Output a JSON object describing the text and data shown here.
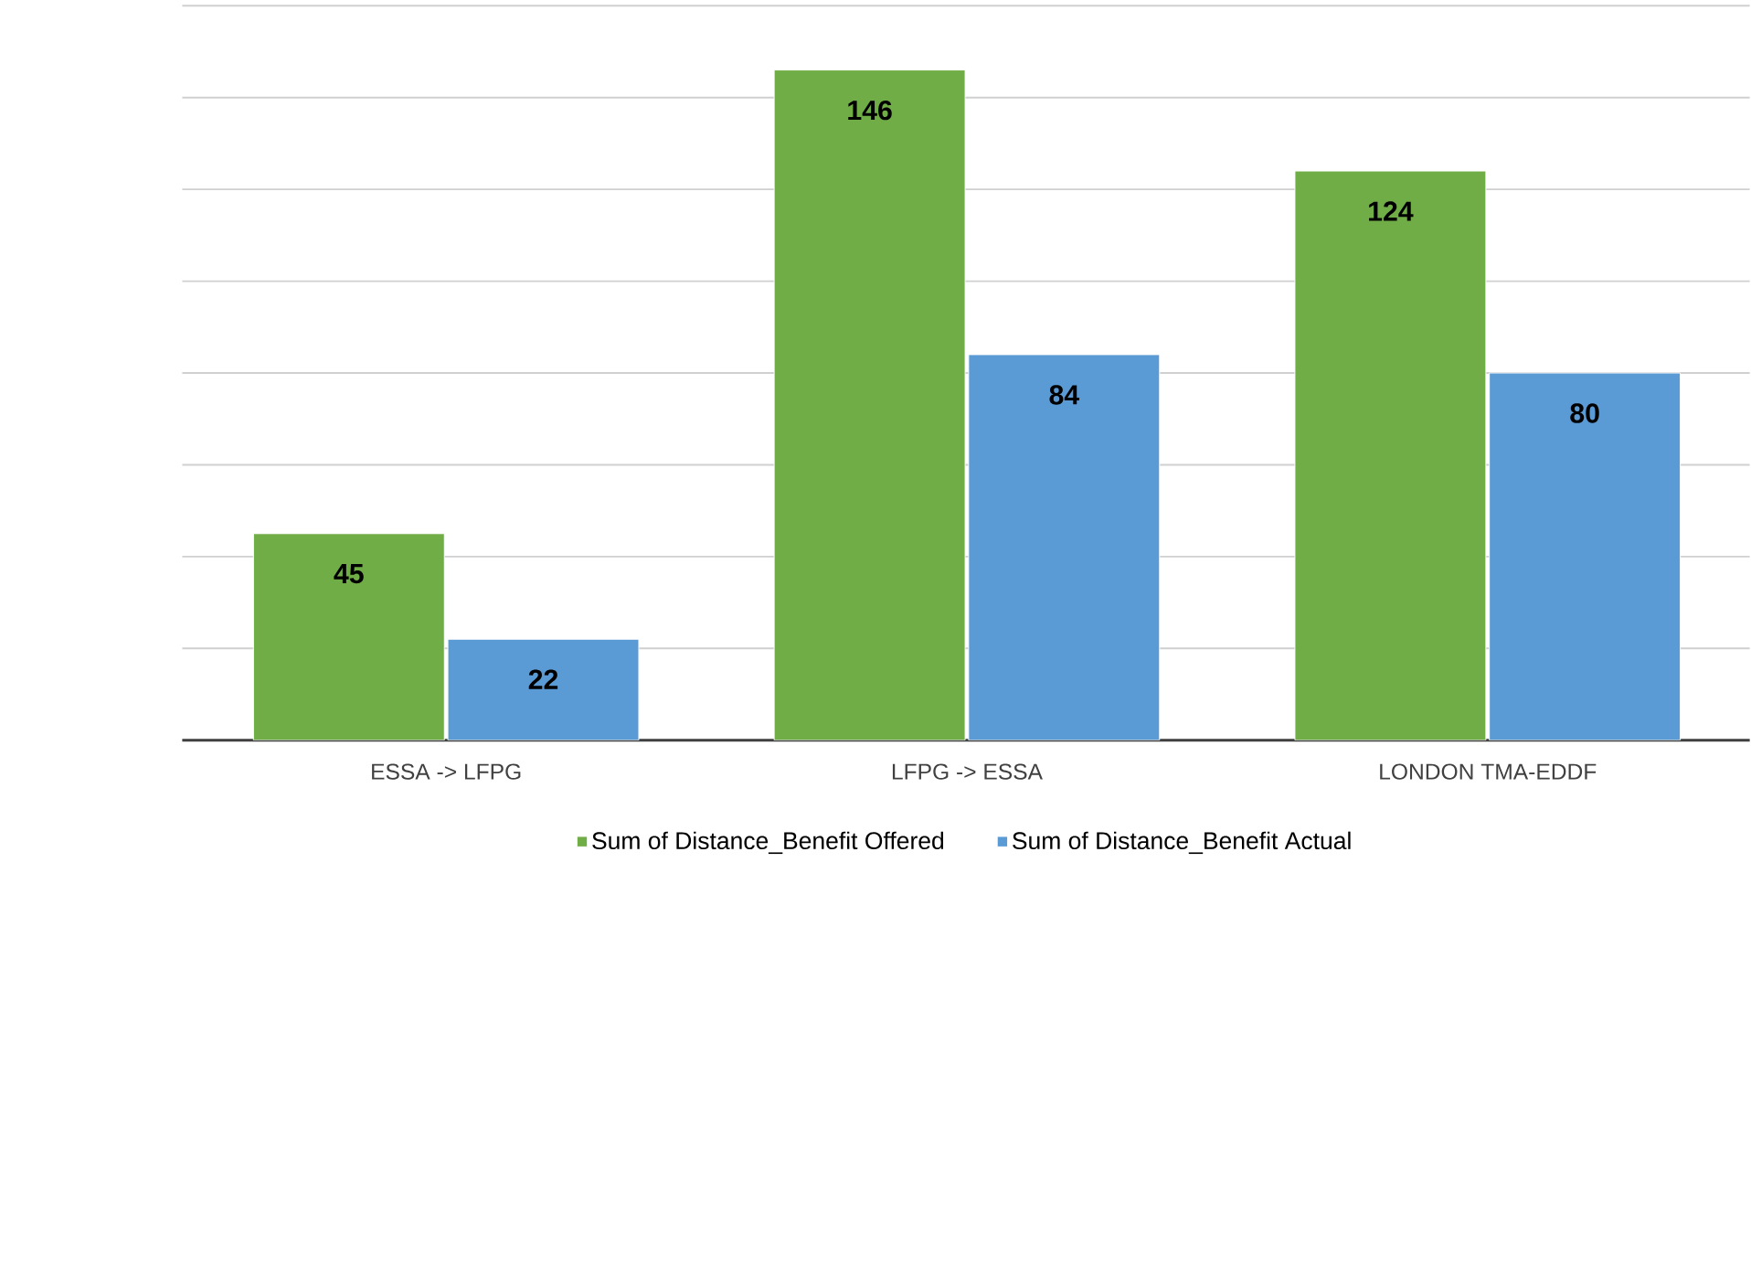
{
  "chart_data": {
    "type": "bar",
    "categories": [
      "ESSA -> LFPG",
      "LFPG -> ESSA",
      "LONDON TMA-EDDF"
    ],
    "series": [
      {
        "name": "Sum of Distance_Benefit Offered",
        "color": "#70ad47",
        "values": [
          45,
          146,
          124
        ]
      },
      {
        "name": "Sum of Distance_Benefit Actual",
        "color": "#5b9bd5",
        "values": [
          22,
          84,
          80
        ]
      }
    ],
    "tick_labels": "x",
    "grid": "y",
    "legend": "bottom",
    "data_labels": true
  }
}
